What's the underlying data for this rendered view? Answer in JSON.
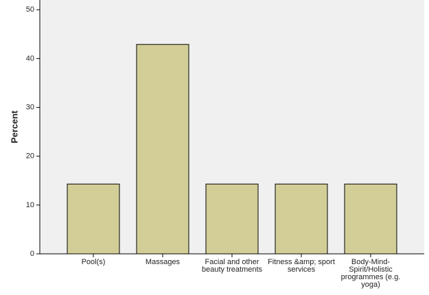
{
  "chart_data": {
    "type": "bar",
    "y_label": "Percent",
    "categories": [
      "Pool(s)",
      "Massages",
      "Facial and other beauty treatments",
      "Fitness &amp; sport services",
      "Body-Mind-Spirit/Holistic programmes (e.g. yoga)"
    ],
    "values": [
      14.3,
      42.9,
      14.3,
      14.3,
      14.3
    ],
    "color": "#d3ce97",
    "ylim": [
      0,
      52
    ],
    "yticks": [
      0,
      10,
      20,
      30,
      40,
      50
    ]
  }
}
